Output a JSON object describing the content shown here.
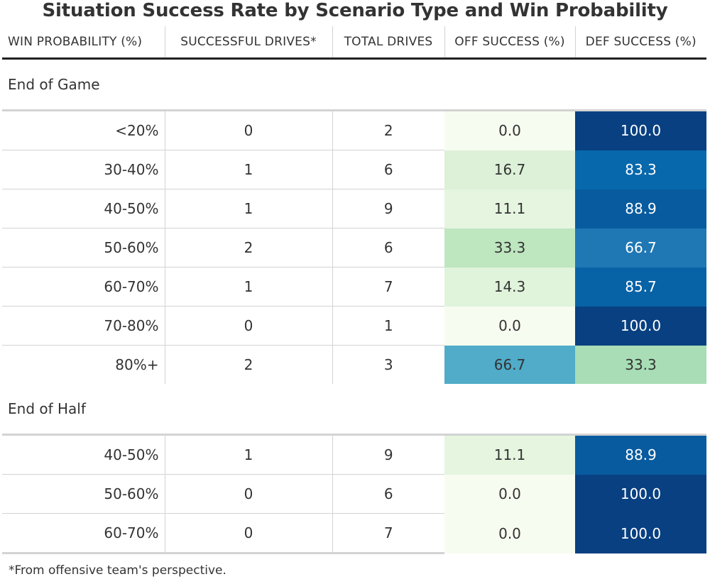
{
  "title": "Situation Success Rate by Scenario Type and Win Probability",
  "headers": [
    "WIN PROBABILITY (%)",
    "SUCCESSFUL DRIVES*",
    "TOTAL DRIVES",
    "OFF SUCCESS (%)",
    "DEF SUCCESS (%)"
  ],
  "footnote": "*From offensive team's perspective.",
  "colors": {
    "off_scale": [
      "#f7fcf0",
      "#e0f3db",
      "#ccebc5",
      "#a8ddb5",
      "#7bccc4",
      "#43a2ca"
    ],
    "def_scale": [
      "#a8ddb5",
      "#43a2ca",
      "#1f77b4",
      "#0868ac",
      "#084081"
    ]
  },
  "chart_data": {
    "type": "table",
    "columns": [
      "WIN PROBABILITY (%)",
      "SUCCESSFUL DRIVES*",
      "TOTAL DRIVES",
      "OFF SUCCESS (%)",
      "DEF SUCCESS (%)"
    ],
    "groups": [
      {
        "name": "End of Game",
        "rows": [
          {
            "wp": "<20%",
            "successful": "0",
            "total": "2",
            "off": "0.0",
            "def": "100.0"
          },
          {
            "wp": "30-40%",
            "successful": "1",
            "total": "6",
            "off": "16.7",
            "def": "83.3"
          },
          {
            "wp": "40-50%",
            "successful": "1",
            "total": "9",
            "off": "11.1",
            "def": "88.9"
          },
          {
            "wp": "50-60%",
            "successful": "2",
            "total": "6",
            "off": "33.3",
            "def": "66.7"
          },
          {
            "wp": "60-70%",
            "successful": "1",
            "total": "7",
            "off": "14.3",
            "def": "85.7"
          },
          {
            "wp": "70-80%",
            "successful": "0",
            "total": "1",
            "off": "0.0",
            "def": "100.0"
          },
          {
            "wp": "80%+",
            "successful": "2",
            "total": "3",
            "off": "66.7",
            "def": "33.3"
          }
        ]
      },
      {
        "name": "End of Half",
        "rows": [
          {
            "wp": "40-50%",
            "successful": "1",
            "total": "9",
            "off": "11.1",
            "def": "88.9"
          },
          {
            "wp": "50-60%",
            "successful": "0",
            "total": "6",
            "off": "0.0",
            "def": "100.0"
          },
          {
            "wp": "60-70%",
            "successful": "0",
            "total": "7",
            "off": "0.0",
            "def": "100.0"
          }
        ]
      }
    ]
  }
}
